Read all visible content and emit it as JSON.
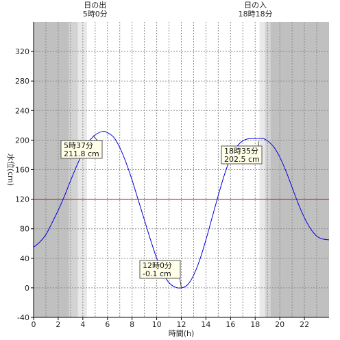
{
  "chart_data": {
    "type": "line",
    "xlabel": "時間(h)",
    "ylabel": "水位(cm)",
    "xlim": [
      0,
      24
    ],
    "ylim": [
      -40,
      360
    ],
    "x_ticks": [
      0,
      2,
      4,
      6,
      8,
      10,
      12,
      14,
      16,
      18,
      20,
      22
    ],
    "x_tick_labels": [
      "0",
      "2",
      "4",
      "6",
      "8",
      "10",
      "12",
      "14",
      "16",
      "18",
      "20",
      "22"
    ],
    "y_ticks": [
      -40,
      0,
      40,
      80,
      120,
      160,
      200,
      240,
      280,
      320
    ],
    "y_tick_labels": [
      "-40",
      "0",
      "40",
      "80",
      "120",
      "160",
      "200",
      "240",
      "280",
      "320"
    ],
    "grid": true,
    "reference_line": {
      "y": 120,
      "color": "#e00000"
    },
    "series_color": "#0000dd",
    "series": [
      {
        "x": [
          0,
          0.5,
          1,
          1.5,
          2,
          2.5,
          3,
          3.5,
          4,
          4.5,
          5,
          5.617,
          6,
          6.5,
          7,
          7.5,
          8,
          8.5,
          9,
          9.5,
          10,
          10.5,
          11,
          11.5,
          12,
          12.5,
          13,
          13.5,
          14,
          14.5,
          15,
          15.5,
          16,
          16.5,
          17,
          17.5,
          18,
          18.583,
          19,
          19.5,
          20,
          20.5,
          21,
          21.5,
          22,
          22.5,
          23,
          23.5,
          24
        ],
        "values": [
          55,
          62,
          72,
          88,
          105,
          124,
          145,
          165,
          183,
          198,
          207,
          211.8,
          210,
          204,
          190,
          170,
          146,
          119,
          92,
          65,
          40,
          20,
          7,
          1,
          -0.1,
          4,
          17,
          38,
          65,
          95,
          125,
          153,
          176,
          191,
          199,
          202,
          202,
          202.5,
          199,
          191,
          177,
          158,
          136,
          114,
          95,
          80,
          70,
          66,
          65
        ]
      }
    ],
    "annotations": [
      {
        "time": "5時37分",
        "level": "211.8 cm",
        "x": 5.617,
        "y": 211.8
      },
      {
        "time": "12時0分",
        "level": "-0.1 cm",
        "x": 12.0,
        "y": -0.1
      },
      {
        "time": "18時35分",
        "level": "202.5 cm",
        "x": 18.583,
        "y": 202.5
      }
    ],
    "sunrise": {
      "label": "日の出",
      "time": "5時0分",
      "x": 5.0
    },
    "sunset": {
      "label": "日の入",
      "time": "18時18分",
      "x": 18.3
    },
    "night_color": "#c0c0c0",
    "twilight_colors": [
      "#d3d3d3",
      "#e8e8e8"
    ]
  }
}
